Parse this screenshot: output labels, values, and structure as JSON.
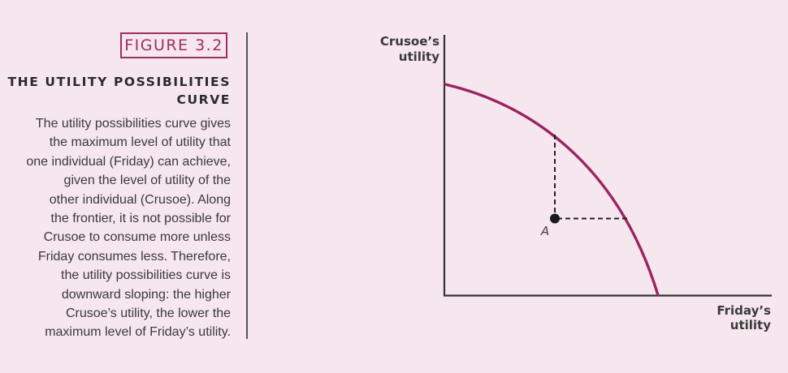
{
  "caption": {
    "figure_label": "FIGURE 3.2",
    "title_line1": "THE UTILITY POSSIBILITIES",
    "title_line2": "CURVE",
    "body_lines": [
      "The utility possibilities curve gives",
      "the maximum level of utility that",
      "one individual (Friday) can achieve,",
      "given the level of utility of the",
      "other individual (Crusoe). Along",
      "the frontier, it is not possible for",
      "Crusoe to consume more unless",
      "Friday consumes less. Therefore,",
      "the utility possibilities curve is",
      "downward sloping: the higher",
      "Crusoe’s utility, the lower the",
      "maximum level of Friday’s utility."
    ]
  },
  "diagram": {
    "y_axis_label_line1": "Crusoe’s",
    "y_axis_label_line2": "utility",
    "x_axis_label_line1": "Friday’s",
    "x_axis_label_line2": "utility",
    "point_label": "A",
    "curve_color": "#9b2462",
    "axis_color": "#333333",
    "point_color": "#1a1a1a"
  }
}
